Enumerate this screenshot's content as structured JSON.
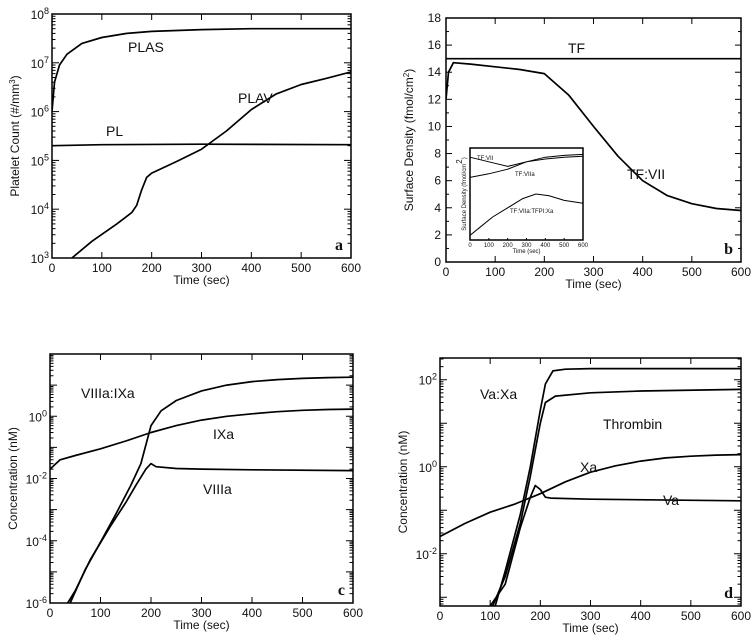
{
  "chart_data": [
    {
      "id": "a",
      "type": "line",
      "panel_label": "a",
      "xlabel": "Time (sec)",
      "ylabel": "Platelet Count (#/mm³)",
      "xlim": [
        0,
        600
      ],
      "ylim": [
        1000,
        100000000
      ],
      "yscale": "log",
      "xticks": [
        0,
        100,
        200,
        300,
        400,
        500,
        600
      ],
      "yticks": [
        {
          "value": 1000,
          "base": "10",
          "exp": "3"
        },
        {
          "value": 10000,
          "base": "10",
          "exp": "4"
        },
        {
          "value": 100000,
          "base": "10",
          "exp": "5"
        },
        {
          "value": 1000000,
          "base": "10",
          "exp": "6"
        },
        {
          "value": 10000000,
          "base": "10",
          "exp": "7"
        },
        {
          "value": 100000000,
          "base": "10",
          "exp": "8"
        }
      ],
      "series": [
        {
          "name": "PLAS",
          "points": [
            [
              0,
              1000000
            ],
            [
              5,
              4000000
            ],
            [
              15,
              9000000
            ],
            [
              30,
              15000000
            ],
            [
              60,
              25000000
            ],
            [
              100,
              33000000
            ],
            [
              150,
              40000000
            ],
            [
              200,
              44000000
            ],
            [
              300,
              48000000
            ],
            [
              400,
              50000000
            ],
            [
              600,
              50000000
            ]
          ]
        },
        {
          "name": "PLAV",
          "points": [
            [
              40,
              1000
            ],
            [
              80,
              2200
            ],
            [
              130,
              5000
            ],
            [
              160,
              8500
            ],
            [
              170,
              12000
            ],
            [
              180,
              25000
            ],
            [
              190,
              45000
            ],
            [
              200,
              55000
            ],
            [
              250,
              95000
            ],
            [
              300,
              170000
            ],
            [
              350,
              400000
            ],
            [
              400,
              1100000
            ],
            [
              450,
              2300000
            ],
            [
              500,
              3600000
            ],
            [
              550,
              4800000
            ],
            [
              600,
              6500000
            ]
          ]
        },
        {
          "name": "PL",
          "points": [
            [
              0,
              200000
            ],
            [
              100,
              210000
            ],
            [
              300,
              215000
            ],
            [
              600,
              210000
            ]
          ]
        }
      ]
    },
    {
      "id": "b",
      "type": "line",
      "panel_label": "b",
      "xlabel": "Time (sec)",
      "ylabel": "Surface Density (fmol/cm²)",
      "xlim": [
        0,
        600
      ],
      "ylim": [
        0,
        18
      ],
      "yscale": "linear",
      "xticks": [
        0,
        100,
        200,
        300,
        400,
        500,
        600
      ],
      "yticks": [
        0,
        2,
        4,
        6,
        8,
        10,
        12,
        14,
        16,
        18
      ],
      "series": [
        {
          "name": "TF",
          "points": [
            [
              0,
              15
            ],
            [
              600,
              15
            ]
          ]
        },
        {
          "name": "TF:VII",
          "points": [
            [
              0,
              12
            ],
            [
              5,
              14
            ],
            [
              15,
              14.7
            ],
            [
              50,
              14.6
            ],
            [
              100,
              14.4
            ],
            [
              150,
              14.2
            ],
            [
              200,
              13.9
            ],
            [
              250,
              12.3
            ],
            [
              300,
              10
            ],
            [
              350,
              7.8
            ],
            [
              400,
              6
            ],
            [
              450,
              4.9
            ],
            [
              500,
              4.3
            ],
            [
              550,
              3.95
            ],
            [
              600,
              3.8
            ]
          ]
        }
      ],
      "inset": {
        "xlabel": "Time (sec)",
        "ylabel": "Surface Density (fmol/cm²)",
        "xticks": [
          0,
          100,
          200,
          300,
          400,
          500,
          600
        ],
        "series": [
          {
            "name": "TF:VII",
            "points": [
              [
                0,
                0.9
              ],
              [
                100,
                0.85
              ],
              [
                200,
                0.8
              ],
              [
                300,
                0.85
              ],
              [
                400,
                0.9
              ],
              [
                500,
                0.92
              ],
              [
                600,
                0.93
              ]
            ]
          },
          {
            "name": "TF:VIIa",
            "points": [
              [
                0,
                0.68
              ],
              [
                100,
                0.72
              ],
              [
                200,
                0.77
              ],
              [
                300,
                0.85
              ],
              [
                400,
                0.88
              ],
              [
                500,
                0.9
              ],
              [
                600,
                0.91
              ]
            ]
          },
          {
            "name": "TF:VIIa:TFPI:Xa",
            "points": [
              [
                0,
                0.05
              ],
              [
                60,
                0.15
              ],
              [
                120,
                0.25
              ],
              [
                200,
                0.35
              ],
              [
                280,
                0.45
              ],
              [
                350,
                0.5
              ],
              [
                420,
                0.48
              ],
              [
                500,
                0.43
              ],
              [
                600,
                0.4
              ]
            ]
          }
        ]
      }
    },
    {
      "id": "c",
      "type": "line",
      "panel_label": "c",
      "xlabel": "Time (sec)",
      "ylabel": "Concentration (nM)",
      "xlim": [
        0,
        600
      ],
      "ylim": [
        1e-06,
        100
      ],
      "yscale": "log",
      "xticks": [
        0,
        100,
        200,
        300,
        400,
        500,
        600
      ],
      "yticks": [
        {
          "value": 1e-06,
          "base": "10",
          "exp": "-6"
        },
        {
          "value": 0.0001,
          "base": "10",
          "exp": "-4"
        },
        {
          "value": 0.01,
          "base": "10",
          "exp": "-2"
        },
        {
          "value": 1,
          "base": "10",
          "exp": "0"
        }
      ],
      "series": [
        {
          "name": "VIIIa:IXa",
          "points": [
            [
              40,
              1e-06
            ],
            [
              70,
              1.2e-05
            ],
            [
              100,
              9e-05
            ],
            [
              130,
              0.0007
            ],
            [
              160,
              0.006
            ],
            [
              180,
              0.03
            ],
            [
              200,
              0.5
            ],
            [
              220,
              1.5
            ],
            [
              250,
              3.2
            ],
            [
              300,
              6.5
            ],
            [
              350,
              10
            ],
            [
              400,
              13
            ],
            [
              450,
              15
            ],
            [
              500,
              16.5
            ],
            [
              550,
              17.5
            ],
            [
              600,
              18
            ]
          ]
        },
        {
          "name": "IXa",
          "points": [
            [
              0,
              0.02
            ],
            [
              20,
              0.04
            ],
            [
              50,
              0.055
            ],
            [
              100,
              0.09
            ],
            [
              150,
              0.16
            ],
            [
              200,
              0.3
            ],
            [
              250,
              0.5
            ],
            [
              300,
              0.75
            ],
            [
              350,
              1
            ],
            [
              400,
              1.2
            ],
            [
              450,
              1.4
            ],
            [
              500,
              1.55
            ],
            [
              550,
              1.65
            ],
            [
              600,
              1.7
            ]
          ]
        },
        {
          "name": "VIIIa",
          "points": [
            [
              35,
              1e-06
            ],
            [
              50,
              2.5e-06
            ],
            [
              80,
              2.5e-05
            ],
            [
              120,
              0.0003
            ],
            [
              150,
              0.0017
            ],
            [
              170,
              0.006
            ],
            [
              190,
              0.02
            ],
            [
              200,
              0.03
            ],
            [
              210,
              0.024
            ],
            [
              250,
              0.021
            ],
            [
              300,
              0.02
            ],
            [
              400,
              0.019
            ],
            [
              600,
              0.018
            ]
          ]
        }
      ]
    },
    {
      "id": "d",
      "type": "line",
      "panel_label": "d",
      "xlabel": "Time (sec)",
      "ylabel": "Concentration (nM)",
      "xlim": [
        0,
        600
      ],
      "ylim": [
        0.00063,
        316
      ],
      "yscale": "log",
      "xticks": [
        0,
        100,
        200,
        300,
        400,
        500,
        600
      ],
      "yticks": [
        {
          "value": 0.01,
          "base": "10",
          "exp": "-2"
        },
        {
          "value": 1,
          "base": "10",
          "exp": "0"
        },
        {
          "value": 100,
          "base": "10",
          "exp": "2"
        }
      ],
      "series": [
        {
          "name": "Va:Xa",
          "points": [
            [
              110,
              0.00063
            ],
            [
              130,
              0.004
            ],
            [
              160,
              0.08
            ],
            [
              180,
              1
            ],
            [
              200,
              20
            ],
            [
              210,
              80
            ],
            [
              225,
              160
            ],
            [
              250,
              175
            ],
            [
              300,
              180
            ],
            [
              600,
              180
            ]
          ]
        },
        {
          "name": "Thrombin",
          "points": [
            [
              105,
              0.00063
            ],
            [
              130,
              0.003
            ],
            [
              160,
              0.05
            ],
            [
              180,
              0.6
            ],
            [
              200,
              10
            ],
            [
              210,
              30
            ],
            [
              230,
              42
            ],
            [
              300,
              50
            ],
            [
              400,
              55
            ],
            [
              600,
              60
            ]
          ]
        },
        {
          "name": "Xa",
          "points": [
            [
              0,
              0.025
            ],
            [
              50,
              0.05
            ],
            [
              100,
              0.09
            ],
            [
              150,
              0.14
            ],
            [
              200,
              0.24
            ],
            [
              250,
              0.45
            ],
            [
              300,
              0.75
            ],
            [
              350,
              1.05
            ],
            [
              400,
              1.35
            ],
            [
              450,
              1.6
            ],
            [
              500,
              1.75
            ],
            [
              550,
              1.85
            ],
            [
              600,
              1.9
            ]
          ]
        },
        {
          "name": "Va",
          "points": [
            [
              100,
              0.00063
            ],
            [
              130,
              0.002
            ],
            [
              160,
              0.04
            ],
            [
              180,
              0.2
            ],
            [
              190,
              0.37
            ],
            [
              200,
              0.3
            ],
            [
              210,
              0.2
            ],
            [
              220,
              0.19
            ],
            [
              300,
              0.18
            ],
            [
              600,
              0.165
            ]
          ]
        }
      ]
    }
  ]
}
